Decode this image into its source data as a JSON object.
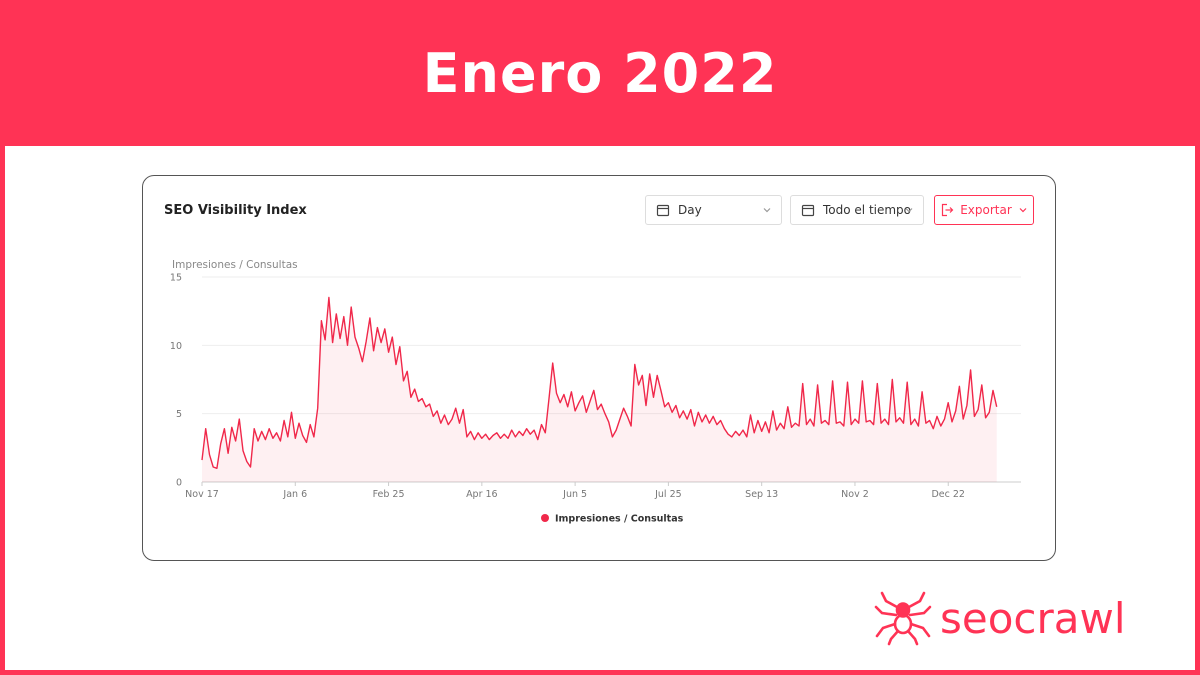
{
  "header": {
    "title": "Enero 2022"
  },
  "card": {
    "title": "SEO Visibility Index",
    "controls": {
      "granularity": "Day",
      "range": "Todo el tiempo",
      "export_label": "Exportar"
    }
  },
  "brand": {
    "name": "seocrawl",
    "color": "#ff3355"
  },
  "icons": {
    "calendar": "calendar-icon",
    "chevron": "chevron-down-icon",
    "export": "export-icon",
    "logo": "spider-icon"
  },
  "chart_data": {
    "type": "area",
    "title": "",
    "ylabel": "Impresiones / Consultas",
    "xlabel": "",
    "ylim": [
      0,
      15
    ],
    "yticks": [
      0,
      5,
      10,
      15
    ],
    "xlim": [
      "2020-11-17",
      "2022-01-30"
    ],
    "xticks": [
      {
        "label": "Nov 17",
        "date": "2020-11-17"
      },
      {
        "label": "Jan 6",
        "date": "2021-01-06"
      },
      {
        "label": "Feb 25",
        "date": "2021-02-25"
      },
      {
        "label": "Apr 16",
        "date": "2021-04-16"
      },
      {
        "label": "Jun 5",
        "date": "2021-06-05"
      },
      {
        "label": "Jul 25",
        "date": "2021-07-25"
      },
      {
        "label": "Sep 13",
        "date": "2021-09-13"
      },
      {
        "label": "Nov 2",
        "date": "2021-11-02"
      },
      {
        "label": "Dec 22",
        "date": "2021-12-22"
      }
    ],
    "legend": {
      "position": "bottom",
      "entries": [
        "Impresiones / Consultas"
      ]
    },
    "grid": true,
    "series": [
      {
        "name": "Impresiones / Consultas",
        "color": "#f0284a",
        "points": [
          [
            "2020-11-17",
            1.6
          ],
          [
            "2020-11-19",
            3.9
          ],
          [
            "2020-11-21",
            2.0
          ],
          [
            "2020-11-23",
            1.1
          ],
          [
            "2020-11-25",
            1.0
          ],
          [
            "2020-11-27",
            2.8
          ],
          [
            "2020-11-29",
            3.9
          ],
          [
            "2020-12-01",
            2.1
          ],
          [
            "2020-12-03",
            4.0
          ],
          [
            "2020-12-05",
            3.0
          ],
          [
            "2020-12-07",
            4.6
          ],
          [
            "2020-12-09",
            2.3
          ],
          [
            "2020-12-11",
            1.5
          ],
          [
            "2020-12-13",
            1.1
          ],
          [
            "2020-12-15",
            3.9
          ],
          [
            "2020-12-17",
            3.0
          ],
          [
            "2020-12-19",
            3.7
          ],
          [
            "2020-12-21",
            3.1
          ],
          [
            "2020-12-23",
            3.9
          ],
          [
            "2020-12-25",
            3.2
          ],
          [
            "2020-12-27",
            3.6
          ],
          [
            "2020-12-29",
            3.0
          ],
          [
            "2020-12-31",
            4.5
          ],
          [
            "2021-01-02",
            3.3
          ],
          [
            "2021-01-04",
            5.1
          ],
          [
            "2021-01-06",
            3.2
          ],
          [
            "2021-01-08",
            4.3
          ],
          [
            "2021-01-10",
            3.4
          ],
          [
            "2021-01-12",
            2.9
          ],
          [
            "2021-01-14",
            4.2
          ],
          [
            "2021-01-16",
            3.3
          ],
          [
            "2021-01-18",
            5.4
          ],
          [
            "2021-01-20",
            11.8
          ],
          [
            "2021-01-22",
            10.4
          ],
          [
            "2021-01-24",
            13.5
          ],
          [
            "2021-01-26",
            10.2
          ],
          [
            "2021-01-28",
            12.3
          ],
          [
            "2021-01-30",
            10.5
          ],
          [
            "2021-02-01",
            12.1
          ],
          [
            "2021-02-03",
            10.0
          ],
          [
            "2021-02-05",
            12.8
          ],
          [
            "2021-02-07",
            10.6
          ],
          [
            "2021-02-09",
            9.8
          ],
          [
            "2021-02-11",
            8.8
          ],
          [
            "2021-02-13",
            10.3
          ],
          [
            "2021-02-15",
            12.0
          ],
          [
            "2021-02-17",
            9.6
          ],
          [
            "2021-02-19",
            11.3
          ],
          [
            "2021-02-21",
            10.2
          ],
          [
            "2021-02-23",
            11.2
          ],
          [
            "2021-02-25",
            9.5
          ],
          [
            "2021-02-27",
            10.6
          ],
          [
            "2021-03-01",
            8.6
          ],
          [
            "2021-03-03",
            9.9
          ],
          [
            "2021-03-05",
            7.4
          ],
          [
            "2021-03-07",
            8.1
          ],
          [
            "2021-03-09",
            6.2
          ],
          [
            "2021-03-11",
            6.8
          ],
          [
            "2021-03-13",
            5.9
          ],
          [
            "2021-03-15",
            6.1
          ],
          [
            "2021-03-17",
            5.5
          ],
          [
            "2021-03-19",
            5.7
          ],
          [
            "2021-03-21",
            4.8
          ],
          [
            "2021-03-23",
            5.2
          ],
          [
            "2021-03-25",
            4.3
          ],
          [
            "2021-03-27",
            4.9
          ],
          [
            "2021-03-29",
            4.2
          ],
          [
            "2021-03-31",
            4.6
          ],
          [
            "2021-04-02",
            5.4
          ],
          [
            "2021-04-04",
            4.3
          ],
          [
            "2021-04-06",
            5.3
          ],
          [
            "2021-04-08",
            3.3
          ],
          [
            "2021-04-10",
            3.7
          ],
          [
            "2021-04-12",
            3.1
          ],
          [
            "2021-04-14",
            3.6
          ],
          [
            "2021-04-16",
            3.2
          ],
          [
            "2021-04-18",
            3.5
          ],
          [
            "2021-04-20",
            3.1
          ],
          [
            "2021-04-22",
            3.4
          ],
          [
            "2021-04-24",
            3.6
          ],
          [
            "2021-04-26",
            3.2
          ],
          [
            "2021-04-28",
            3.5
          ],
          [
            "2021-04-30",
            3.2
          ],
          [
            "2021-05-02",
            3.8
          ],
          [
            "2021-05-04",
            3.3
          ],
          [
            "2021-05-06",
            3.7
          ],
          [
            "2021-05-08",
            3.4
          ],
          [
            "2021-05-10",
            3.9
          ],
          [
            "2021-05-12",
            3.5
          ],
          [
            "2021-05-14",
            3.8
          ],
          [
            "2021-05-16",
            3.1
          ],
          [
            "2021-05-18",
            4.2
          ],
          [
            "2021-05-20",
            3.6
          ],
          [
            "2021-05-22",
            6.1
          ],
          [
            "2021-05-24",
            8.7
          ],
          [
            "2021-05-26",
            6.5
          ],
          [
            "2021-05-28",
            5.8
          ],
          [
            "2021-05-30",
            6.4
          ],
          [
            "2021-06-01",
            5.5
          ],
          [
            "2021-06-03",
            6.6
          ],
          [
            "2021-06-05",
            5.2
          ],
          [
            "2021-06-07",
            5.8
          ],
          [
            "2021-06-09",
            6.3
          ],
          [
            "2021-06-11",
            5.1
          ],
          [
            "2021-06-13",
            5.9
          ],
          [
            "2021-06-15",
            6.7
          ],
          [
            "2021-06-17",
            5.3
          ],
          [
            "2021-06-19",
            5.7
          ],
          [
            "2021-06-21",
            5.0
          ],
          [
            "2021-06-23",
            4.4
          ],
          [
            "2021-06-25",
            3.3
          ],
          [
            "2021-06-27",
            3.8
          ],
          [
            "2021-06-29",
            4.6
          ],
          [
            "2021-07-01",
            5.4
          ],
          [
            "2021-07-03",
            4.8
          ],
          [
            "2021-07-05",
            4.1
          ],
          [
            "2021-07-07",
            8.6
          ],
          [
            "2021-07-09",
            7.1
          ],
          [
            "2021-07-11",
            7.8
          ],
          [
            "2021-07-13",
            5.6
          ],
          [
            "2021-07-15",
            7.9
          ],
          [
            "2021-07-17",
            6.2
          ],
          [
            "2021-07-19",
            7.8
          ],
          [
            "2021-07-21",
            6.7
          ],
          [
            "2021-07-23",
            5.5
          ],
          [
            "2021-07-25",
            5.8
          ],
          [
            "2021-07-27",
            5.1
          ],
          [
            "2021-07-29",
            5.6
          ],
          [
            "2021-07-31",
            4.7
          ],
          [
            "2021-08-02",
            5.2
          ],
          [
            "2021-08-04",
            4.6
          ],
          [
            "2021-08-06",
            5.3
          ],
          [
            "2021-08-08",
            4.1
          ],
          [
            "2021-08-10",
            5.1
          ],
          [
            "2021-08-12",
            4.4
          ],
          [
            "2021-08-14",
            4.9
          ],
          [
            "2021-08-16",
            4.3
          ],
          [
            "2021-08-18",
            4.8
          ],
          [
            "2021-08-20",
            4.2
          ],
          [
            "2021-08-22",
            4.5
          ],
          [
            "2021-08-24",
            3.9
          ],
          [
            "2021-08-26",
            3.5
          ],
          [
            "2021-08-28",
            3.3
          ],
          [
            "2021-08-30",
            3.7
          ],
          [
            "2021-09-01",
            3.4
          ],
          [
            "2021-09-03",
            3.8
          ],
          [
            "2021-09-05",
            3.3
          ],
          [
            "2021-09-07",
            4.9
          ],
          [
            "2021-09-09",
            3.6
          ],
          [
            "2021-09-11",
            4.5
          ],
          [
            "2021-09-13",
            3.7
          ],
          [
            "2021-09-15",
            4.4
          ],
          [
            "2021-09-17",
            3.6
          ],
          [
            "2021-09-19",
            5.2
          ],
          [
            "2021-09-21",
            3.8
          ],
          [
            "2021-09-23",
            4.3
          ],
          [
            "2021-09-25",
            3.9
          ],
          [
            "2021-09-27",
            5.5
          ],
          [
            "2021-09-29",
            4.0
          ],
          [
            "2021-10-01",
            4.3
          ],
          [
            "2021-10-03",
            4.1
          ],
          [
            "2021-10-05",
            7.2
          ],
          [
            "2021-10-07",
            4.2
          ],
          [
            "2021-10-09",
            4.6
          ],
          [
            "2021-10-11",
            4.1
          ],
          [
            "2021-10-13",
            7.1
          ],
          [
            "2021-10-15",
            4.3
          ],
          [
            "2021-10-17",
            4.5
          ],
          [
            "2021-10-19",
            4.2
          ],
          [
            "2021-10-21",
            7.4
          ],
          [
            "2021-10-23",
            4.3
          ],
          [
            "2021-10-25",
            4.4
          ],
          [
            "2021-10-27",
            4.1
          ],
          [
            "2021-10-29",
            7.3
          ],
          [
            "2021-10-31",
            4.2
          ],
          [
            "2021-11-02",
            4.6
          ],
          [
            "2021-11-04",
            4.3
          ],
          [
            "2021-11-06",
            7.4
          ],
          [
            "2021-11-08",
            4.4
          ],
          [
            "2021-11-10",
            4.5
          ],
          [
            "2021-11-12",
            4.2
          ],
          [
            "2021-11-14",
            7.2
          ],
          [
            "2021-11-16",
            4.3
          ],
          [
            "2021-11-18",
            4.6
          ],
          [
            "2021-11-20",
            4.2
          ],
          [
            "2021-11-22",
            7.5
          ],
          [
            "2021-11-24",
            4.4
          ],
          [
            "2021-11-26",
            4.7
          ],
          [
            "2021-11-28",
            4.3
          ],
          [
            "2021-11-30",
            7.3
          ],
          [
            "2021-12-02",
            4.2
          ],
          [
            "2021-12-04",
            4.6
          ],
          [
            "2021-12-06",
            4.1
          ],
          [
            "2021-12-08",
            6.6
          ],
          [
            "2021-12-10",
            4.3
          ],
          [
            "2021-12-12",
            4.5
          ],
          [
            "2021-12-14",
            3.9
          ],
          [
            "2021-12-16",
            4.8
          ],
          [
            "2021-12-18",
            4.1
          ],
          [
            "2021-12-20",
            4.6
          ],
          [
            "2021-12-22",
            5.8
          ],
          [
            "2021-12-24",
            4.4
          ],
          [
            "2021-12-26",
            5.2
          ],
          [
            "2021-12-28",
            7.0
          ],
          [
            "2021-12-30",
            4.6
          ],
          [
            "2022-01-01",
            5.6
          ],
          [
            "2022-01-03",
            8.2
          ],
          [
            "2022-01-05",
            4.8
          ],
          [
            "2022-01-07",
            5.3
          ],
          [
            "2022-01-09",
            7.1
          ],
          [
            "2022-01-11",
            4.7
          ],
          [
            "2022-01-13",
            5.1
          ],
          [
            "2022-01-15",
            6.7
          ],
          [
            "2022-01-17",
            5.5
          ]
        ]
      }
    ]
  }
}
